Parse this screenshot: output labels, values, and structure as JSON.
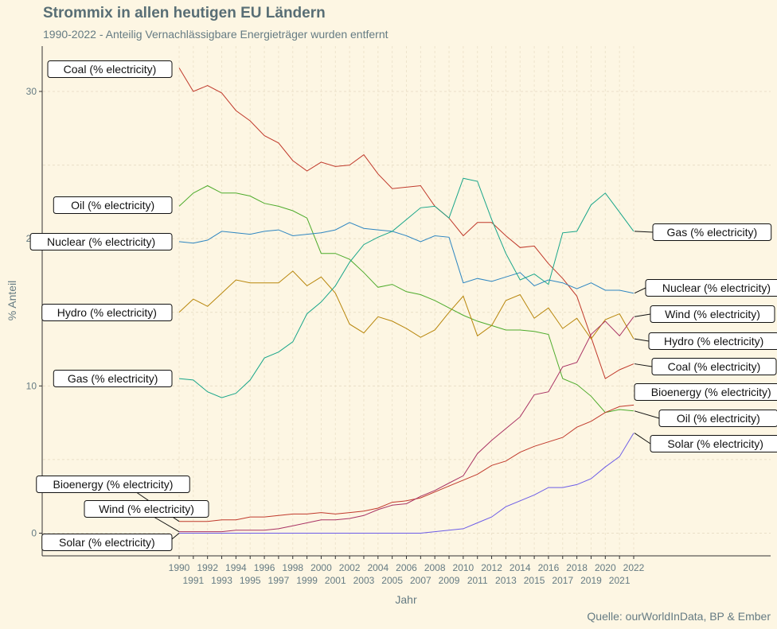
{
  "title": "Strommix in allen heutigen EU Ländern",
  "subtitle": "1990-2022 - Anteilig Vernachlässigbare Energieträger wurden entfernt",
  "caption": "Quelle: ourWorldInData, BP & Ember",
  "chart_data": {
    "type": "line",
    "xlabel": "Jahr",
    "ylabel": "% Anteil",
    "xlim": [
      1990,
      2022
    ],
    "ylim": [
      -1.5,
      33
    ],
    "x_ticks": [
      1990,
      1991,
      1992,
      1993,
      1994,
      1995,
      1996,
      1997,
      1998,
      1999,
      2000,
      2001,
      2002,
      2003,
      2004,
      2005,
      2006,
      2007,
      2008,
      2009,
      2010,
      2011,
      2012,
      2013,
      2014,
      2015,
      2016,
      2017,
      2018,
      2019,
      2020,
      2021,
      2022
    ],
    "y_ticks": [
      0,
      10,
      20,
      30
    ],
    "grid": true,
    "legend": "direct labels at series start and end",
    "x": [
      1990,
      1991,
      1992,
      1993,
      1994,
      1995,
      1996,
      1997,
      1998,
      1999,
      2000,
      2001,
      2002,
      2003,
      2004,
      2005,
      2006,
      2007,
      2008,
      2009,
      2010,
      2011,
      2012,
      2013,
      2014,
      2015,
      2016,
      2017,
      2018,
      2019,
      2020,
      2021,
      2022
    ],
    "series": [
      {
        "name": "Coal (% electricity)",
        "color": "#c0392b",
        "values": [
          31.6,
          30.0,
          30.4,
          29.9,
          28.7,
          28.0,
          27.0,
          26.5,
          25.3,
          24.6,
          25.2,
          24.9,
          25.0,
          25.7,
          24.4,
          23.4,
          23.5,
          23.6,
          22.2,
          21.4,
          20.2,
          21.1,
          21.1,
          20.2,
          19.4,
          19.5,
          18.3,
          17.3,
          16.1,
          13.3,
          10.5,
          11.1,
          11.5
        ]
      },
      {
        "name": "Oil (% electricity)",
        "color": "#4dab2b",
        "values": [
          22.2,
          23.1,
          23.6,
          23.1,
          23.1,
          22.9,
          22.4,
          22.2,
          21.9,
          21.4,
          19.0,
          19.0,
          18.6,
          17.7,
          16.7,
          16.9,
          16.4,
          16.2,
          15.8,
          15.3,
          14.8,
          14.4,
          14.1,
          13.8,
          13.8,
          13.7,
          13.5,
          10.5,
          10.1,
          9.3,
          8.2,
          8.4,
          8.3
        ]
      },
      {
        "name": "Nuclear (% electricity)",
        "color": "#2e86c1",
        "values": [
          19.8,
          19.7,
          19.9,
          20.5,
          20.4,
          20.3,
          20.5,
          20.6,
          20.2,
          20.3,
          20.4,
          20.6,
          21.1,
          20.7,
          20.6,
          20.5,
          20.2,
          19.8,
          20.2,
          20.1,
          17.0,
          17.3,
          17.1,
          17.4,
          17.7,
          16.8,
          17.2,
          17.0,
          16.6,
          17.0,
          16.5,
          16.5,
          16.3
        ]
      },
      {
        "name": "Hydro (% electricity)",
        "color": "#b8860b",
        "values": [
          15.0,
          15.9,
          15.4,
          16.3,
          17.2,
          17.0,
          17.0,
          17.0,
          17.8,
          16.8,
          17.4,
          16.3,
          14.2,
          13.6,
          14.7,
          14.4,
          13.9,
          13.3,
          13.8,
          15.0,
          16.1,
          13.4,
          14.1,
          15.8,
          16.2,
          14.6,
          15.3,
          13.9,
          14.6,
          13.2,
          14.5,
          14.9,
          13.2
        ]
      },
      {
        "name": "Gas (% electricity)",
        "color": "#17a589",
        "values": [
          10.5,
          10.4,
          9.6,
          9.2,
          9.5,
          10.4,
          11.9,
          12.3,
          13.0,
          14.9,
          15.7,
          16.8,
          18.4,
          19.6,
          20.1,
          20.5,
          21.3,
          22.1,
          22.2,
          21.4,
          24.1,
          23.9,
          21.3,
          19.0,
          17.2,
          17.6,
          16.9,
          20.4,
          20.5,
          22.3,
          23.1,
          21.8,
          20.5
        ]
      },
      {
        "name": "Bioenergy (% electricity)",
        "color": "#c0392b",
        "values": [
          0.8,
          0.8,
          0.8,
          0.9,
          0.9,
          1.1,
          1.1,
          1.2,
          1.3,
          1.3,
          1.4,
          1.3,
          1.4,
          1.5,
          1.7,
          2.1,
          2.2,
          2.4,
          2.8,
          3.2,
          3.6,
          4.0,
          4.6,
          4.9,
          5.5,
          5.9,
          6.2,
          6.5,
          7.2,
          7.6,
          8.2,
          8.6,
          8.7
        ]
      },
      {
        "name": "Wind (% electricity)",
        "color": "#a93263",
        "values": [
          0.1,
          0.1,
          0.1,
          0.1,
          0.2,
          0.2,
          0.2,
          0.3,
          0.5,
          0.7,
          0.9,
          0.9,
          1.0,
          1.2,
          1.6,
          1.9,
          2.0,
          2.5,
          2.9,
          3.4,
          3.9,
          5.4,
          6.3,
          7.1,
          7.9,
          9.4,
          9.6,
          11.3,
          11.6,
          13.5,
          14.4,
          13.4,
          14.7
        ]
      },
      {
        "name": "Solar (% electricity)",
        "color": "#6c5ce7",
        "values": [
          0.0,
          0.0,
          0.0,
          0.0,
          0.0,
          0.0,
          0.0,
          0.0,
          0.0,
          0.0,
          0.0,
          0.0,
          0.0,
          0.0,
          0.0,
          0.0,
          0.0,
          0.0,
          0.1,
          0.2,
          0.3,
          0.7,
          1.1,
          1.8,
          2.2,
          2.6,
          3.1,
          3.1,
          3.3,
          3.7,
          4.5,
          5.2,
          6.8
        ]
      }
    ]
  },
  "labels_left": {
    "coal": "Coal (% electricity)",
    "oil": "Oil (% electricity)",
    "nuclear": "Nuclear (% electricity)",
    "hydro": "Hydro (% electricity)",
    "gas": "Gas (% electricity)",
    "bioenergy": "Bioenergy (% electricity)",
    "wind": "Wind (% electricity)",
    "solar": "Solar (% electricity)"
  },
  "labels_right": {
    "gas": "Gas (% electricity)",
    "nuclear": "Nuclear (% electricity)",
    "wind": "Wind (% electricity)",
    "hydro": "Hydro (% electricity)",
    "coal": "Coal (% electricity)",
    "bioenergy": "Bioenergy (% electricity)",
    "oil": "Oil (% electricity)",
    "solar": "Solar (% electricity)"
  }
}
